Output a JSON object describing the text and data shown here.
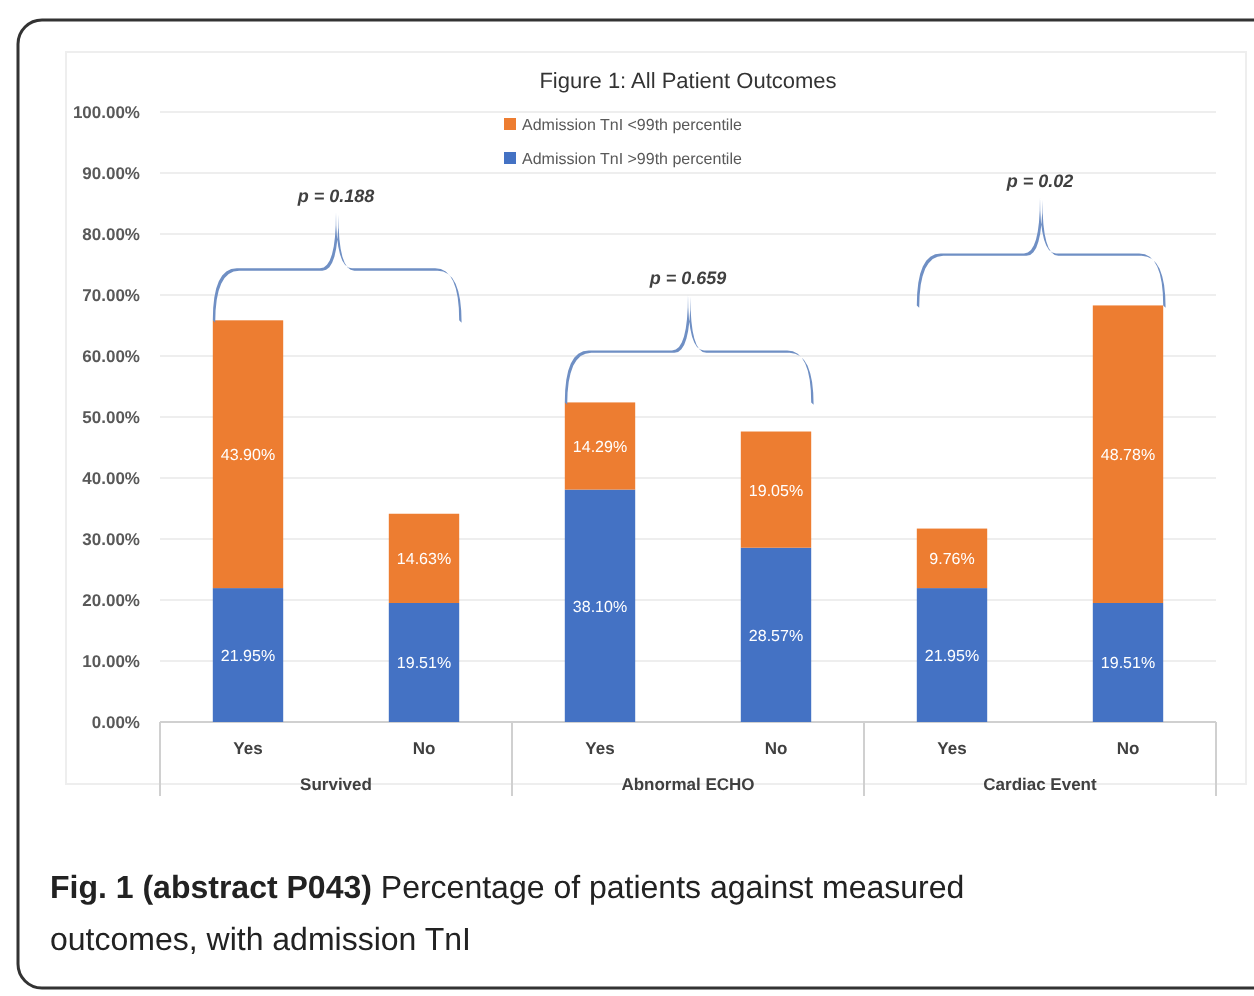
{
  "chart_data": {
    "type": "bar",
    "title": "Figure 1: All Patient Outcomes",
    "stacked": true,
    "categories": [
      "Yes",
      "No",
      "Yes",
      "No",
      "Yes",
      "No"
    ],
    "series": [
      {
        "name": "Admission TnI >99th percentile",
        "color": "#4472c4",
        "values": [
          21.95,
          19.51,
          38.1,
          28.57,
          21.95,
          19.51
        ],
        "value_labels": [
          "21.95%",
          "19.51%",
          "38.10%",
          "28.57%",
          "21.95%",
          "19.51%"
        ]
      },
      {
        "name": "Admission TnI <99th percentile",
        "color": "#ed7d31",
        "values": [
          43.9,
          14.63,
          14.29,
          19.05,
          9.76,
          48.78
        ],
        "value_labels": [
          "43.90%",
          "14.63%",
          "14.29%",
          "19.05%",
          "9.76%",
          "48.78%"
        ]
      }
    ],
    "ylim": [
      0,
      100
    ],
    "yticks": [
      {
        "value": 0,
        "label": "0.00%"
      },
      {
        "value": 10,
        "label": "10.00%"
      },
      {
        "value": 20,
        "label": "20.00%"
      },
      {
        "value": 30,
        "label": "30.00%"
      },
      {
        "value": 40,
        "label": "40.00%"
      },
      {
        "value": 50,
        "label": "50.00%"
      },
      {
        "value": 60,
        "label": "60.00%"
      },
      {
        "value": 70,
        "label": "70.00%"
      },
      {
        "value": 80,
        "label": "80.00%"
      },
      {
        "value": 90,
        "label": "90.00%"
      },
      {
        "value": 100,
        "label": "100.00%"
      }
    ],
    "grid": "y",
    "legend": "top",
    "annotations": [
      "Survived",
      "Abnormal ECHO",
      "Cardiac Event",
      "p = 0.188",
      "p = 0.659",
      "p = 0.02",
      "Fig. 1 (abstract P043)",
      "Percentage of patients against measured outcomes, with admission TnI"
    ]
  }
}
